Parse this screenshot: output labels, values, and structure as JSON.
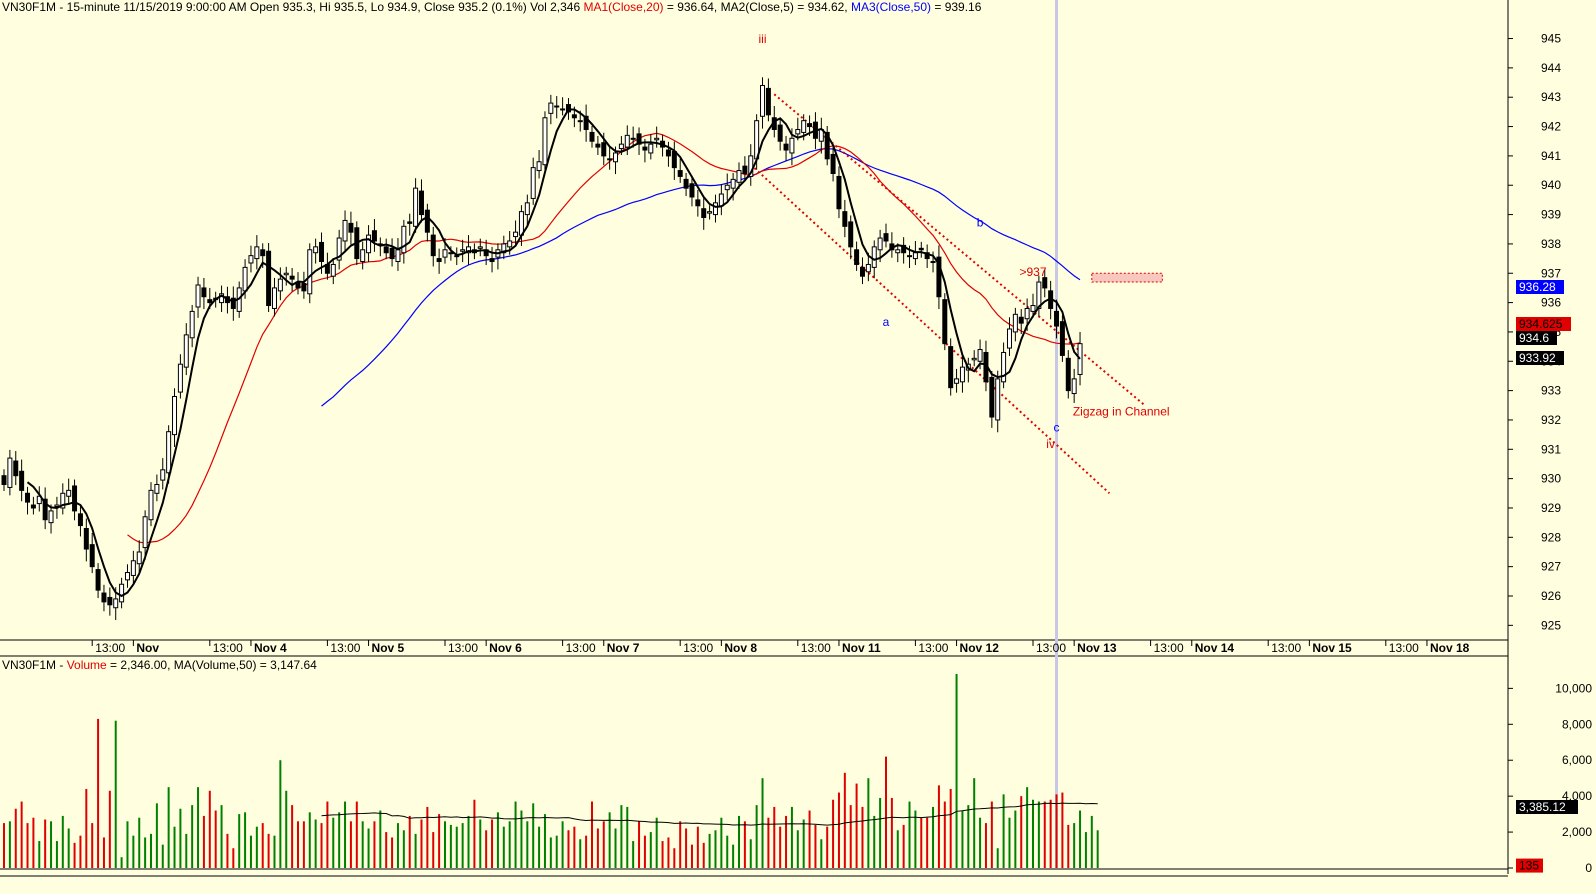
{
  "header": {
    "symbol": "VN30F1M",
    "info": "VN30F1M - 15-minute 11/15/2019 9:00:00 AM Open 935.3, Hi 935.5, Lo 934.9, Close 935.2 (0.1%) Vol 2,346",
    "ma1_label": "MA1(Close,20)",
    "ma1_value": " = 936.64, ",
    "ma2_text": "MA2(Close,5) = 934.62, ",
    "ma3_label": "MA3(Close,50)",
    "ma3_value": " = 939.16"
  },
  "volume_header": {
    "symbol": "VN30F1M - ",
    "vol_label": "Volume",
    "rest": " = 2,346.00, MA(Volume,50) = 3,147.64"
  },
  "colors": {
    "background": "#ffffe0",
    "up": "#008000",
    "down": "#e00000",
    "ma20": "#e00000",
    "ma5": "#000000",
    "ma50": "#0000ff",
    "channel": "#e00000",
    "wave_red": "#e00000",
    "wave_blue": "#0000ff"
  },
  "chart_data": [
    {
      "type": "candlestick",
      "title": "VN30F1M - 15-minute",
      "ylim": [
        924.5,
        945.7
      ],
      "y_ticks": [
        925,
        926,
        927,
        928,
        929,
        930,
        931,
        932,
        933,
        934,
        935,
        936,
        937,
        938,
        939,
        940,
        941,
        942,
        943,
        944,
        945
      ],
      "x_labels": [
        "13:00",
        "Nov",
        "13:00",
        "Nov 4",
        "13:00",
        "Nov 5",
        "13:00",
        "Nov 6",
        "13:00",
        "Nov 7",
        "13:00",
        "Nov 8",
        "13:00",
        "Nov 11",
        "13:00",
        "Nov 12",
        "13:00",
        "Nov 13",
        "13:00",
        "Nov 14",
        "13:00",
        "Nov 15",
        "13:00",
        "Nov 18"
      ],
      "x_label_bar_index": [
        15,
        22,
        35,
        42,
        55,
        62,
        75,
        82,
        95,
        102,
        115,
        122,
        135,
        142,
        155,
        162,
        175,
        182,
        195,
        202,
        215,
        222,
        235,
        242
      ],
      "close_series": [
        929.8,
        930.7,
        930.1,
        929.6,
        929.2,
        929.0,
        929.4,
        928.6,
        928.9,
        929.1,
        929.5,
        929.6,
        928.9,
        928.4,
        927.6,
        927.0,
        926.2,
        925.8,
        925.7,
        925.9,
        926.4,
        926.8,
        927.2,
        927.5,
        928.7,
        929.6,
        929.8,
        930.3,
        931.6,
        932.8,
        933.9,
        934.9,
        935.7,
        936.6,
        936.2,
        936.0,
        936.1,
        936.3,
        936.0,
        935.8,
        936.5,
        937.2,
        937.6,
        937.9,
        937.6,
        935.9,
        936.5,
        936.8,
        937.0,
        936.8,
        936.5,
        936.4,
        937.8,
        937.9,
        937.4,
        937.0,
        937.3,
        938.2,
        938.8,
        938.4,
        937.5,
        937.8,
        938.3,
        938.1,
        938.0,
        937.7,
        937.5,
        937.8,
        938.6,
        938.7,
        939.9,
        939.0,
        938.4,
        937.6,
        937.4,
        937.8,
        937.7,
        937.6,
        937.8,
        937.9,
        937.7,
        937.9,
        937.6,
        937.4,
        937.8,
        938.0,
        938.1,
        938.4,
        939.1,
        939.4,
        940.6,
        940.8,
        942.3,
        942.8,
        942.7,
        942.6,
        942.5,
        942.3,
        942.2,
        941.9,
        941.5,
        941.3,
        941.0,
        940.9,
        941.1,
        941.4,
        941.7,
        941.6,
        941.4,
        941.2,
        941.4,
        941.6,
        941.3,
        941.0,
        940.6,
        940.3,
        939.9,
        939.6,
        939.3,
        938.9,
        939.1,
        939.4,
        939.7,
        940.0,
        940.2,
        940.5,
        940.4,
        941.0,
        942.2,
        943.4,
        942.4,
        941.9,
        941.5,
        941.2,
        941.6,
        941.9,
        942.2,
        942.0,
        941.6,
        941.9,
        940.9,
        940.4,
        939.2,
        938.6,
        937.9,
        937.3,
        936.9,
        937.3,
        937.9,
        938.2,
        938.1,
        937.8,
        937.8,
        937.7,
        937.6,
        937.7,
        937.8,
        937.5,
        937.4,
        936.2,
        934.6,
        933.1,
        933.4,
        933.8,
        933.9,
        934.1,
        934.4,
        933.3,
        932.1,
        933.4,
        934.3,
        935.1,
        935.6,
        935.3,
        935.8,
        935.9,
        936.7,
        936.5,
        935.8,
        935.2,
        934.2,
        933.0,
        933.4,
        934.6
      ],
      "close_series_note": "approx. close of each 15-minute bar, left to right",
      "series": [
        {
          "name": "MA1(Close,20)",
          "last": 936.64
        },
        {
          "name": "MA2(Close,5)",
          "last": 934.62
        },
        {
          "name": "MA3(Close,50)",
          "last": 939.16
        }
      ],
      "price_tags": [
        {
          "label": "936.28",
          "bg": "#0000ff",
          "fg": "#ffffff",
          "value": 936.28
        },
        {
          "label": "934.625",
          "bg": "#e00000",
          "fg": "#000000",
          "value": 934.625
        },
        {
          "label": "934.6",
          "bg": "#000000",
          "fg": "#ffffff",
          "value": 934.6
        },
        {
          "label": "933.92",
          "bg": "#000000",
          "fg": "#ffffff",
          "value": 933.92
        }
      ],
      "annotations": [
        {
          "text": "iii",
          "color": "#e00000",
          "bar": 129,
          "y": 944.85
        },
        {
          "text": "a",
          "color": "#0000ff",
          "bar": 150,
          "y": 935.2
        },
        {
          "text": "b",
          "color": "#0000ff",
          "bar": 166,
          "y": 938.6
        },
        {
          "text": "c",
          "color": "#0000ff",
          "bar": 179,
          "y": 931.6
        },
        {
          "text": "iv",
          "color": "#e00000",
          "bar": 178,
          "y": 931.05
        },
        {
          "text": ">937",
          "color": "#e00000",
          "bar": 175,
          "y": 936.9
        },
        {
          "text": "Zigzag in Channel",
          "color": "#e00000",
          "bar": 190,
          "y": 932.15
        }
      ],
      "channel": [
        {
          "from": [
            131,
            943.1
          ],
          "to": [
            194,
            932.5
          ]
        },
        {
          "from": [
            127,
            940.7
          ],
          "to": [
            188,
            929.5
          ]
        }
      ],
      "target_zone": {
        "from_bar": 185,
        "to_bar": 197,
        "y_low": 936.7,
        "y_high": 937.0
      }
    },
    {
      "type": "bar",
      "title": "Volume",
      "ylim": [
        0,
        10800
      ],
      "y_ticks": [
        0,
        2000,
        4000,
        6000,
        8000,
        10000
      ],
      "y_tick_labels": [
        "0",
        "2,000",
        "4,000",
        "6,000",
        "8,000",
        "10,000"
      ],
      "values": [
        2500,
        2600,
        3300,
        3700,
        2500,
        2800,
        1500,
        2700,
        2600,
        1500,
        2900,
        2200,
        1400,
        1800,
        4400,
        2500,
        8300,
        1700,
        4300,
        8200,
        600,
        2600,
        1800,
        2800,
        1700,
        1900,
        3600,
        1300,
        4500,
        2300,
        3300,
        1900,
        3500,
        4500,
        2900,
        4300,
        3200,
        3500,
        1900,
        1100,
        3000,
        3100,
        1800,
        2300,
        2500,
        1900,
        1800,
        6000,
        4300,
        3500,
        2600,
        2600,
        3100,
        2700,
        2500,
        3700,
        2800,
        3100,
        3700,
        2600,
        3700,
        2600,
        2200,
        2600,
        3200,
        2000,
        1700,
        2500,
        2100,
        2900,
        1900,
        2700,
        3400,
        2000,
        3000,
        2600,
        2400,
        2300,
        2500,
        2900,
        3800,
        2700,
        2100,
        2700,
        3100,
        2300,
        2600,
        3700,
        3200,
        2600,
        3600,
        2300,
        3000,
        1700,
        1800,
        2600,
        2100,
        2300,
        1600,
        1800,
        3700,
        2200,
        2600,
        3100,
        2200,
        3500,
        3400,
        1500,
        2600,
        1800,
        2000,
        2800,
        1500,
        1700,
        1100,
        2600,
        2200,
        1300,
        2300,
        1400,
        1900,
        2100,
        2800,
        1800,
        1300,
        2900,
        2600,
        1600,
        3500,
        5000,
        2800,
        3400,
        2300,
        2900,
        3400,
        2100,
        2700,
        3200,
        2400,
        1600,
        2300,
        3800,
        4200,
        5300,
        3500,
        4700,
        3400,
        5000,
        2900,
        3900,
        6200,
        3900,
        2100,
        2400,
        3700,
        3200,
        2800,
        2800,
        3400,
        4600,
        3700,
        4400,
        10800,
        3200,
        3500,
        5000,
        2800,
        2500,
        3700,
        1100,
        4100,
        2800,
        3200,
        4000,
        4500,
        3800,
        3700,
        3700,
        3800,
        4100,
        4200,
        2400,
        2500,
        3200,
        2000,
        2900,
        2100
      ],
      "colors_by_bar": "green when candle closed up, red when down",
      "series": [
        {
          "name": "MA(Volume,50)",
          "last": 3147.64
        }
      ],
      "price_tags": [
        {
          "label": "3,385.12",
          "bg": "#000000",
          "fg": "#ffffff",
          "value": 3385.12
        },
        {
          "label": "135",
          "bg": "#e00000",
          "fg": "#000000",
          "value": 135
        }
      ]
    }
  ]
}
